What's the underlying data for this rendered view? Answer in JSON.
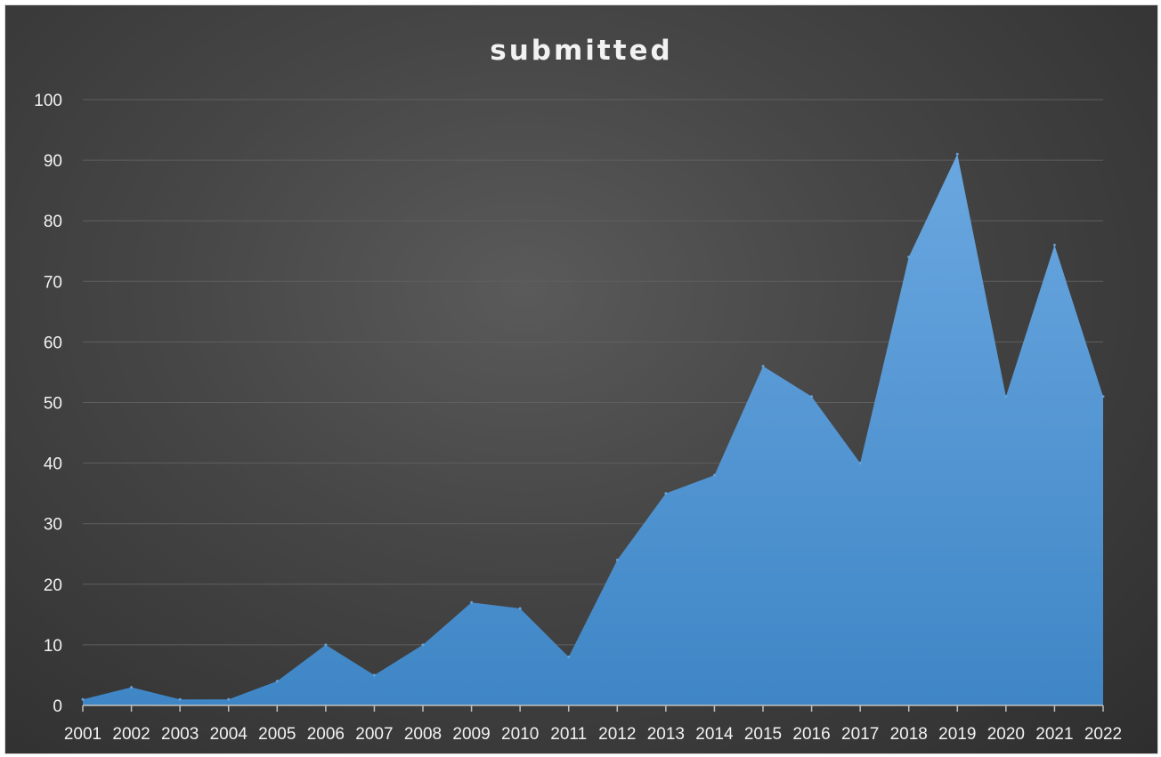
{
  "chart_data": {
    "type": "area",
    "title": "submitted",
    "xlabel": "",
    "ylabel": "",
    "categories": [
      "2001",
      "2002",
      "2003",
      "2004",
      "2005",
      "2006",
      "2007",
      "2008",
      "2009",
      "2010",
      "2011",
      "2012",
      "2013",
      "2014",
      "2015",
      "2016",
      "2017",
      "2018",
      "2019",
      "2020",
      "2021",
      "2022"
    ],
    "values": [
      1,
      3,
      1,
      1,
      4,
      10,
      5,
      10,
      17,
      16,
      8,
      24,
      35,
      38,
      56,
      51,
      40,
      74,
      91,
      51,
      76,
      51
    ],
    "ylim": [
      0,
      100
    ],
    "yticks": [
      0,
      10,
      20,
      30,
      40,
      50,
      60,
      70,
      80,
      90,
      100
    ],
    "grid": true,
    "legend": "none",
    "colors": {
      "area_top": "#6aa7e0",
      "area_bottom": "#3f86c6",
      "gridline": "#5f5f5f",
      "axis": "#bfbfbf",
      "text": "#f2f2f2"
    }
  }
}
